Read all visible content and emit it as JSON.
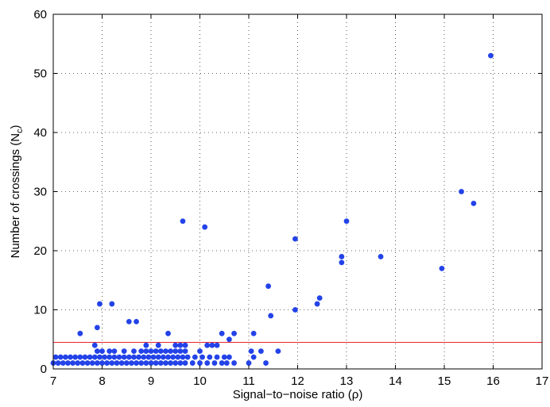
{
  "chart_data": {
    "type": "scatter",
    "title": "",
    "xlabel": "Signal−to−noise ratio (ρ)",
    "ylabel_main": "Number of crossings (N",
    "ylabel_sub": "c",
    "ylabel_close": ")",
    "xlim": [
      7,
      17
    ],
    "ylim": [
      0,
      60
    ],
    "xticks": [
      "7",
      "8",
      "9",
      "10",
      "11",
      "12",
      "13",
      "14",
      "15",
      "16",
      "17"
    ],
    "yticks": [
      "0",
      "10",
      "20",
      "30",
      "40",
      "50",
      "60"
    ],
    "grid": true,
    "marker_color": "#2343e8",
    "threshold": {
      "y": 4.5,
      "color": "#e8232f"
    },
    "points": [
      [
        15.95,
        53
      ],
      [
        15.35,
        30
      ],
      [
        15.6,
        28
      ],
      [
        9.65,
        25
      ],
      [
        13.0,
        25
      ],
      [
        10.1,
        24
      ],
      [
        11.95,
        22
      ],
      [
        12.9,
        19
      ],
      [
        13.7,
        19
      ],
      [
        12.9,
        18
      ],
      [
        14.95,
        17
      ],
      [
        11.4,
        14
      ],
      [
        12.45,
        12
      ],
      [
        7.95,
        11
      ],
      [
        8.2,
        11
      ],
      [
        12.4,
        11
      ],
      [
        11.95,
        10
      ],
      [
        11.45,
        9
      ],
      [
        8.55,
        8
      ],
      [
        8.7,
        8
      ],
      [
        7.9,
        7
      ],
      [
        7.55,
        6
      ],
      [
        9.35,
        6
      ],
      [
        10.45,
        6
      ],
      [
        10.7,
        6
      ],
      [
        11.1,
        6
      ],
      [
        10.6,
        5
      ],
      [
        7.85,
        4
      ],
      [
        8.9,
        4
      ],
      [
        9.15,
        4
      ],
      [
        9.5,
        4
      ],
      [
        9.6,
        4
      ],
      [
        9.7,
        4
      ],
      [
        10.15,
        4
      ],
      [
        10.25,
        4
      ],
      [
        10.35,
        4
      ],
      [
        7.9,
        3
      ],
      [
        8.0,
        3
      ],
      [
        8.15,
        3
      ],
      [
        8.25,
        3
      ],
      [
        8.45,
        3
      ],
      [
        8.65,
        3
      ],
      [
        8.8,
        3
      ],
      [
        8.9,
        3
      ],
      [
        9.0,
        3
      ],
      [
        9.1,
        3
      ],
      [
        9.2,
        3
      ],
      [
        9.3,
        3
      ],
      [
        9.4,
        3
      ],
      [
        9.5,
        3
      ],
      [
        9.6,
        3
      ],
      [
        9.7,
        3
      ],
      [
        10.0,
        3
      ],
      [
        11.05,
        3
      ],
      [
        11.25,
        3
      ],
      [
        11.6,
        3
      ],
      [
        7.05,
        2
      ],
      [
        7.15,
        2
      ],
      [
        7.25,
        2
      ],
      [
        7.35,
        2
      ],
      [
        7.45,
        2
      ],
      [
        7.55,
        2
      ],
      [
        7.65,
        2
      ],
      [
        7.75,
        2
      ],
      [
        7.85,
        2
      ],
      [
        7.95,
        2
      ],
      [
        8.05,
        2
      ],
      [
        8.15,
        2
      ],
      [
        8.25,
        2
      ],
      [
        8.35,
        2
      ],
      [
        8.45,
        2
      ],
      [
        8.55,
        2
      ],
      [
        8.65,
        2
      ],
      [
        8.75,
        2
      ],
      [
        8.85,
        2
      ],
      [
        8.95,
        2
      ],
      [
        9.05,
        2
      ],
      [
        9.15,
        2
      ],
      [
        9.25,
        2
      ],
      [
        9.35,
        2
      ],
      [
        9.45,
        2
      ],
      [
        9.55,
        2
      ],
      [
        9.65,
        2
      ],
      [
        9.75,
        2
      ],
      [
        9.9,
        2
      ],
      [
        10.05,
        2
      ],
      [
        10.2,
        2
      ],
      [
        10.35,
        2
      ],
      [
        10.5,
        2
      ],
      [
        10.6,
        2
      ],
      [
        11.1,
        2
      ],
      [
        7.0,
        1
      ],
      [
        7.1,
        1
      ],
      [
        7.2,
        1
      ],
      [
        7.3,
        1
      ],
      [
        7.4,
        1
      ],
      [
        7.5,
        1
      ],
      [
        7.6,
        1
      ],
      [
        7.7,
        1
      ],
      [
        7.8,
        1
      ],
      [
        7.9,
        1
      ],
      [
        8.0,
        1
      ],
      [
        8.1,
        1
      ],
      [
        8.2,
        1
      ],
      [
        8.3,
        1
      ],
      [
        8.4,
        1
      ],
      [
        8.5,
        1
      ],
      [
        8.6,
        1
      ],
      [
        8.7,
        1
      ],
      [
        8.8,
        1
      ],
      [
        8.9,
        1
      ],
      [
        9.0,
        1
      ],
      [
        9.1,
        1
      ],
      [
        9.2,
        1
      ],
      [
        9.3,
        1
      ],
      [
        9.4,
        1
      ],
      [
        9.5,
        1
      ],
      [
        9.6,
        1
      ],
      [
        9.7,
        1
      ],
      [
        9.85,
        1
      ],
      [
        10.0,
        1
      ],
      [
        10.15,
        1
      ],
      [
        10.3,
        1
      ],
      [
        10.45,
        1
      ],
      [
        10.55,
        1
      ],
      [
        10.7,
        1
      ],
      [
        11.0,
        1
      ],
      [
        11.35,
        1
      ]
    ]
  }
}
